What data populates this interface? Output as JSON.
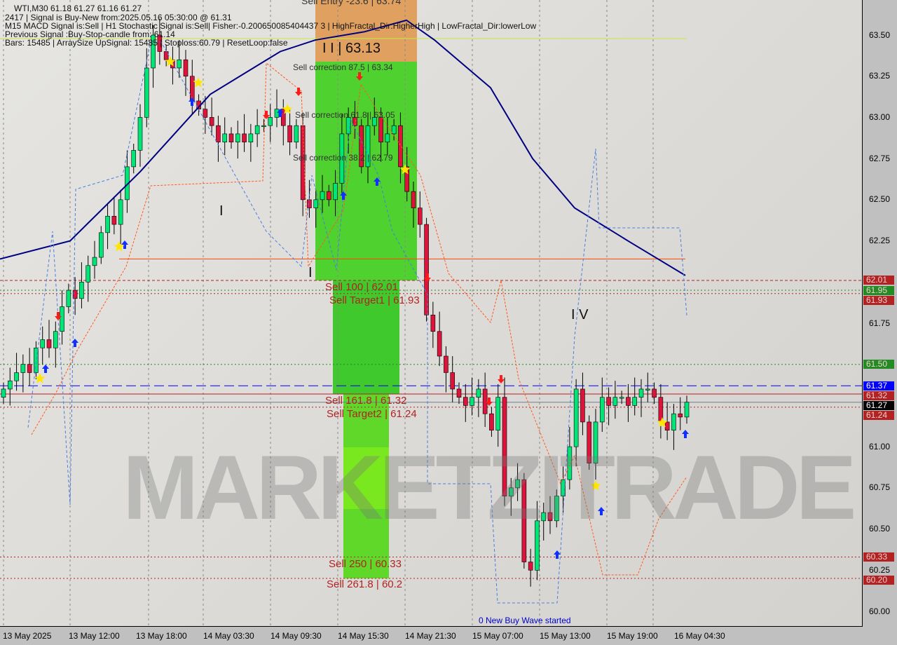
{
  "header": {
    "symbol_line": "WTI,M30  61.18 61.27 61.16 61.27",
    "signal_line": "2417 | Signal is Buy-New from:2025.05.16 05:30:00 @ 61.31",
    "indicator_line": "M15 MACD Signal is:Sell | H1 Stochastic Signal is:Sell| Fisher:-0.200650085404437 3 | HighFractal_Dir:HigherHigh | LowFractal_Dir:lowerLow",
    "previous_line": "Previous Signal :Buy-Stop-candle from: 61.14",
    "bars_line": "Bars: 15485 | ArraySize UpSignal: 15485 | Stoploss:60.79 | ResetLoop:false"
  },
  "watermark": "MARKETZITRADE",
  "wave_labels": [
    "I",
    "I I | 63.13",
    "I",
    "I V"
  ],
  "levels": {
    "sell_entry": "Sell Entry -23.6 | 63.74",
    "corr_875": "Sell correction 87.5 | 63.34",
    "corr_618": "Sell correction 61.8 | 63.05",
    "corr_382": "Sell correction 38.2 | 62.79",
    "sell_100": "Sell 100 | 62.01",
    "target1": "Sell Target1 | 61.93",
    "sell_1618": "Sell 161.8 | 61.32",
    "target2": "Sell Target2 | 61.24",
    "sell_250": "Sell  250 | 60.33",
    "sell_2618": "Sell  261.8 | 60.2",
    "new_wave": "0 New Buy Wave started"
  },
  "price_tags": [
    {
      "value": "62.01",
      "color": "#b22222"
    },
    {
      "value": "61.95",
      "color": "#228b22"
    },
    {
      "value": "61.93",
      "color": "#b22222"
    },
    {
      "value": "61.50",
      "color": "#228b22"
    },
    {
      "value": "61.37",
      "color": "#0000ff"
    },
    {
      "value": "61.32",
      "color": "#b22222"
    },
    {
      "value": "61.27",
      "color": "#000000"
    },
    {
      "value": "61.24",
      "color": "#b22222"
    },
    {
      "value": "60.33",
      "color": "#b22222"
    },
    {
      "value": "60.20",
      "color": "#b22222"
    }
  ],
  "chart_data": {
    "type": "candlestick",
    "symbol": "WTI",
    "timeframe": "M30",
    "ylim": [
      59.98,
      63.72
    ],
    "y_ticks": [
      "63.50",
      "63.25",
      "63.00",
      "62.75",
      "62.50",
      "62.25",
      "61.75",
      "61.00",
      "60.75",
      "60.50",
      "60.25",
      "60.00"
    ],
    "x_ticks": [
      "13 May 2025",
      "13 May 12:00",
      "13 May 18:00",
      "14 May 03:30",
      "14 May 09:30",
      "14 May 15:30",
      "14 May 21:30",
      "15 May 07:00",
      "15 May 13:00",
      "15 May 19:00",
      "16 May 04:30"
    ],
    "closes": [
      61.35,
      61.4,
      61.45,
      61.5,
      61.45,
      61.6,
      61.65,
      61.6,
      61.7,
      61.85,
      61.95,
      61.9,
      62.0,
      62.1,
      62.15,
      62.3,
      62.4,
      62.35,
      62.5,
      62.7,
      62.8,
      63.0,
      63.3,
      63.5,
      63.4,
      63.35,
      63.3,
      63.35,
      63.25,
      63.1,
      63.05,
      63.0,
      62.95,
      62.85,
      62.9,
      62.85,
      62.9,
      62.85,
      62.9,
      62.95,
      62.95,
      63.0,
      63.05,
      62.95,
      62.85,
      62.95,
      62.5,
      62.45,
      62.5,
      62.55,
      62.5,
      62.6,
      62.9,
      63.0,
      62.95,
      62.7,
      62.95,
      63.0,
      62.85,
      62.9,
      62.95,
      62.7,
      62.55,
      62.45,
      62.35,
      61.8,
      61.7,
      61.55,
      61.45,
      61.35,
      61.3,
      61.25,
      61.3,
      61.35,
      61.2,
      61.1,
      61.3,
      60.7,
      60.75,
      60.8,
      60.3,
      60.25,
      60.55,
      60.6,
      60.55,
      60.7,
      60.8,
      61.0,
      61.35,
      61.15,
      60.9,
      61.15,
      61.3,
      61.25,
      61.3,
      61.3,
      61.25,
      61.3,
      61.35,
      61.35,
      61.3,
      61.15,
      61.1,
      61.2,
      61.18,
      61.27
    ],
    "moving_average": [
      [
        0,
        62.14
      ],
      [
        100,
        62.25
      ],
      [
        200,
        62.67
      ],
      [
        300,
        63.14
      ],
      [
        400,
        63.4
      ],
      [
        450,
        63.47
      ],
      [
        520,
        63.52
      ],
      [
        580,
        63.59
      ],
      [
        620,
        63.47
      ],
      [
        700,
        63.18
      ],
      [
        760,
        62.75
      ],
      [
        820,
        62.45
      ],
      [
        900,
        62.24
      ],
      [
        978,
        62.04
      ]
    ],
    "horizontal_levels": [
      {
        "price": 62.01,
        "color": "#b22222",
        "style": "dashed"
      },
      {
        "price": 61.95,
        "color": "#228b22",
        "style": "dotted"
      },
      {
        "price": 61.93,
        "color": "#b22222",
        "style": "dotted"
      },
      {
        "price": 61.5,
        "color": "#228b22",
        "style": "dotted"
      },
      {
        "price": 61.37,
        "color": "#0000ff",
        "style": "dashed"
      },
      {
        "price": 61.32,
        "color": "#b22222",
        "style": "solid"
      },
      {
        "price": 61.27,
        "color": "#708090",
        "style": "solid"
      },
      {
        "price": 61.24,
        "color": "#b22222",
        "style": "dotted"
      },
      {
        "price": 60.33,
        "color": "#b22222",
        "style": "dotted"
      },
      {
        "price": 60.2,
        "color": "#b22222",
        "style": "dotted"
      },
      {
        "price": 62.14,
        "color": "#ff4500",
        "style": "solid"
      }
    ],
    "bull_color": "#00e676",
    "bear_color": "#dc143c",
    "ma_color": "#000080"
  }
}
